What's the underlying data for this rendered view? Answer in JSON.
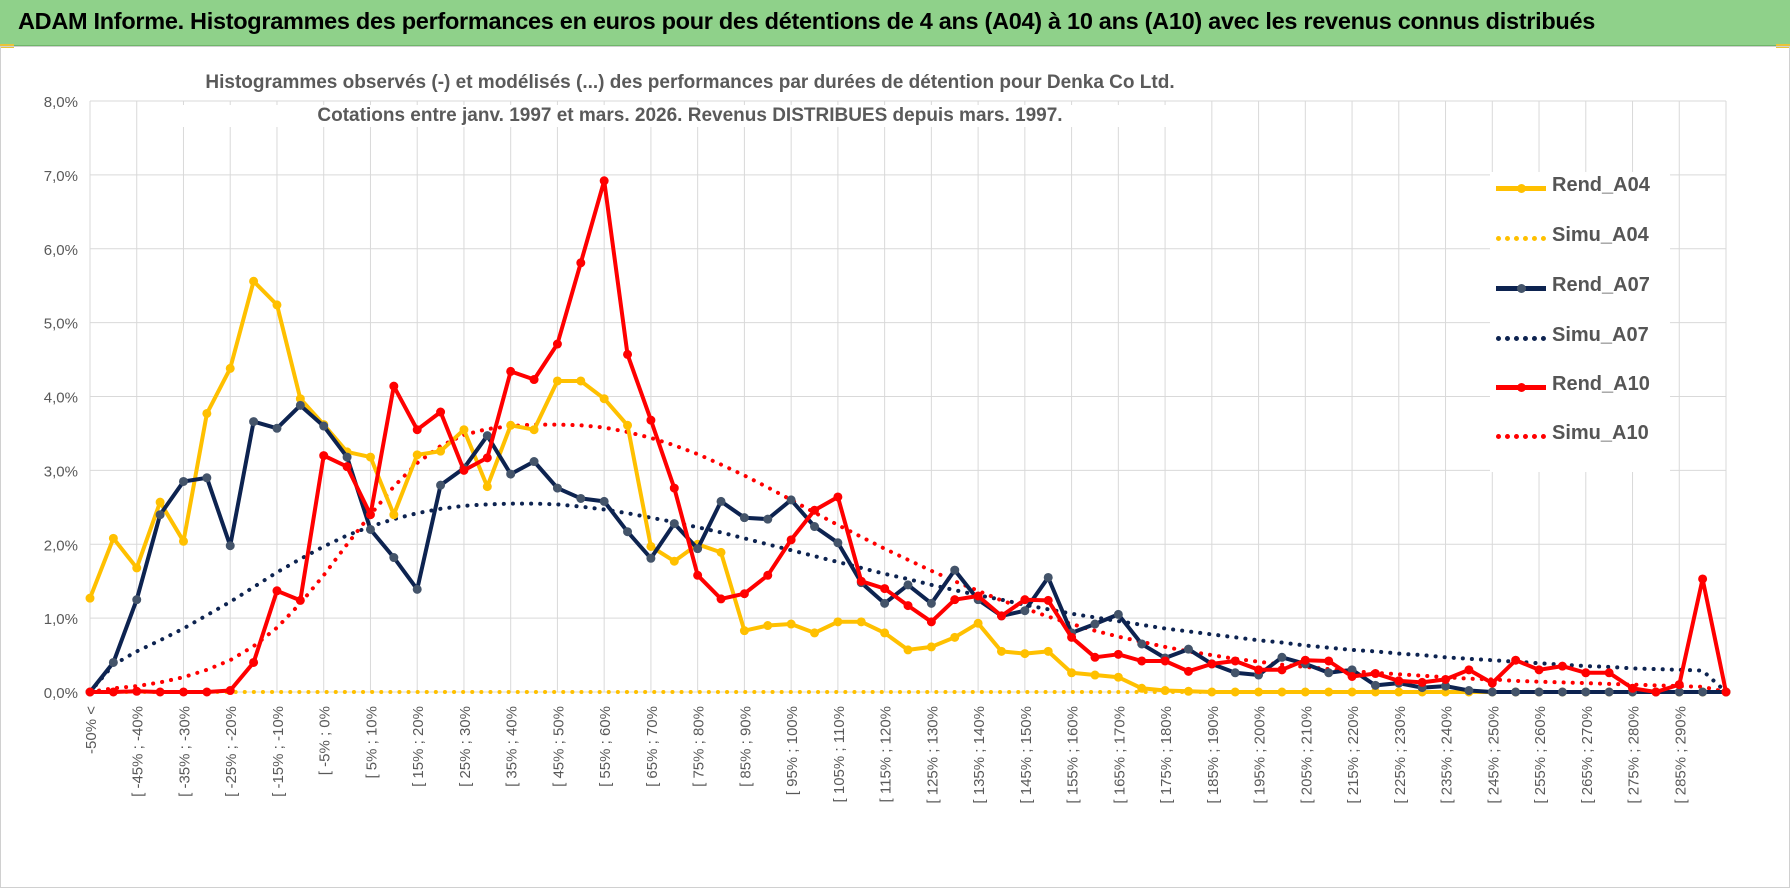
{
  "header": {
    "banner_title": "ADAM Informe. Histogrammes des performances en euros pour des détentions de 4 ans (A04) à 10 ans (A10) avec les revenus connus distribués"
  },
  "colors": {
    "banner_bg": "#8fd18a",
    "A04": "#ffc000",
    "A07": "#0d2350",
    "A07_marker": "#44546a",
    "A10": "#ff0000",
    "grid": "#d9d9d9",
    "axis_text": "#595959"
  },
  "chart_data": {
    "type": "line",
    "title": "Histogrammes observés (-) et modélisés (...) des performances par durées de détention pour Denka Co Ltd.",
    "subtitle": "Cotations entre janv. 1997 et mars. 2026. Revenus DISTRIBUES depuis mars. 1997.",
    "xlabel": "",
    "ylabel": "",
    "ylim": [
      0,
      8
    ],
    "y_ticks": [
      "0,0%",
      "1,0%",
      "2,0%",
      "3,0%",
      "4,0%",
      "5,0%",
      "6,0%",
      "7,0%",
      "8,0%"
    ],
    "grid": true,
    "legend_position": "right",
    "categories": [
      "-50% <",
      "[ -50% ; -45% [",
      "[ -45% ; -40% [",
      "[ -40% ; -35% [",
      "[ -35% ; -30% [",
      "[ -30% ; -25% [",
      "[ -25% ; -20% [",
      "[ -20% ; -15% [",
      "[ -15% ; -10% [",
      "[ -10% ; -5% [",
      "[ -5% ; 0% [",
      "[ 0% ; 5% [",
      "[ 5% ; 10% [",
      "[ 10% ; 15% [",
      "[ 15% ; 20% [",
      "[ 20% ; 25% [",
      "[ 25% ; 30% [",
      "[ 30% ; 35% [",
      "[ 35% ; 40% [",
      "[ 40% ; 45% [",
      "[ 45% ; 50% [",
      "[ 50% ; 55% [",
      "[ 55% ; 60% [",
      "[ 60% ; 65% [",
      "[ 65% ; 70% [",
      "[ 70% ; 75% [",
      "[ 75% ; 80% [",
      "[ 80% ; 85% [",
      "[ 85% ; 90% [",
      "[ 90% ; 95% [",
      "[ 95% ; 100% [",
      "[ 100% ; 105% [",
      "[ 105% ; 110% [",
      "[ 110% ; 115% [",
      "[ 115% ; 120% [",
      "[ 120% ; 125% [",
      "[ 125% ; 130% [",
      "[ 130% ; 135% [",
      "[ 135% ; 140% [",
      "[ 140% ; 145% [",
      "[ 145% ; 150% [",
      "[ 150% ; 155% [",
      "[ 155% ; 160% [",
      "[ 160% ; 165% [",
      "[ 165% ; 170% [",
      "[ 170% ; 175% [",
      "[ 175% ; 180% [",
      "[ 180% ; 185% [",
      "[ 185% ; 190% [",
      "[ 190% ; 195% [",
      "[ 195% ; 200% [",
      "[ 200% ; 205% [",
      "[ 205% ; 210% [",
      "[ 210% ; 215% [",
      "[ 215% ; 220% [",
      "[ 220% ; 225% [",
      "[ 225% ; 230% [",
      "[ 230% ; 235% [",
      "[ 235% ; 240% [",
      "[ 240% ; 245% [",
      "[ 245% ; 250% [",
      "[ 250% ; 255% [",
      "[ 255% ; 260% [",
      "[ 260% ; 265% [",
      "[ 265% ; 270% [",
      "[ 270% ; 275% [",
      "[ 275% ; 280% [",
      "[ 280% ; 285% [",
      "[ 285% ; 290% [",
      "[ 290% ; 295% [",
      "[ 295% ; 300% ["
    ],
    "x_tick_labels": [
      "-50% <",
      "[ -45% ; -40%",
      "[ -35% ; -30%",
      "[ -25% ; -20%",
      "[ -15% ; -10%",
      "[ -5% ; 0%",
      "[ 5% ; 10%",
      "[ 15% ; 20%",
      "[ 25% ; 30%",
      "[ 35% ; 40%",
      "[ 45% ; 50%",
      "[ 55% ; 60%",
      "[ 65% ; 70%",
      "[ 75% ; 80%",
      "[ 85% ; 90%",
      "[ 95% ; 100%",
      "[ 105% ; 110%",
      "[ 115% ; 120%",
      "[ 125% ; 130%",
      "[ 135% ; 140%",
      "[ 145% ; 150%",
      "[ 155% ; 160%",
      "[ 165% ; 170%",
      "[ 175% ; 180%",
      "[ 185% ; 190%",
      "[ 195% ; 200%",
      "[ 205% ; 210%",
      "[ 215% ; 220%",
      "[ 225% ; 230%",
      "[ 235% ; 240%",
      "[ 245% ; 250%",
      "[ 255% ; 260%",
      "[ 265% ; 270%",
      "[ 275% ; 280%",
      "[ 285% ; 290%"
    ],
    "series": [
      {
        "name": "Rend_A04",
        "style": "solid",
        "marker": true,
        "color": "#ffc000",
        "values": [
          1.27,
          2.08,
          1.68,
          2.57,
          2.04,
          3.77,
          4.38,
          5.56,
          5.24,
          3.97,
          3.62,
          3.25,
          3.18,
          2.4,
          3.21,
          3.26,
          3.55,
          2.78,
          3.61,
          3.55,
          4.21,
          4.21,
          3.97,
          3.61,
          1.97,
          1.77,
          2.0,
          1.89,
          0.83,
          0.9,
          0.92,
          0.8,
          0.95,
          0.95,
          0.8,
          0.57,
          0.61,
          0.74,
          0.93,
          0.55,
          0.52,
          0.55,
          0.26,
          0.23,
          0.2,
          0.05,
          0.02,
          0.01,
          0.0,
          0.0,
          0.0,
          0.0,
          0.0,
          0.0,
          0.0,
          0.0,
          0.0,
          0.0,
          0.0,
          0.0,
          0.0,
          0.0,
          0.0,
          0.0,
          0.0,
          0.0,
          0.0,
          0.0,
          0.0,
          0.0,
          0.0
        ]
      },
      {
        "name": "Simu_A04",
        "style": "dotted",
        "marker": false,
        "color": "#ffc000",
        "values": [
          0.0,
          0.0,
          0.0,
          0.0,
          0.0,
          0.0,
          0.0,
          0.0,
          0.0,
          0.0,
          0.0,
          0.0,
          0.0,
          0.0,
          0.0,
          0.0,
          0.0,
          0.0,
          0.0,
          0.0,
          0.0,
          0.0,
          0.0,
          0.0,
          0.0,
          0.0,
          0.0,
          0.0,
          0.0,
          0.0,
          0.0,
          0.0,
          0.0,
          0.0,
          0.0,
          0.0,
          0.0,
          0.0,
          0.0,
          0.0,
          0.0,
          0.0,
          0.0,
          0.0,
          0.0,
          0.0,
          0.0,
          0.0,
          0.0,
          0.0,
          0.0,
          0.0,
          0.0,
          0.0,
          0.0,
          0.0,
          0.0,
          0.0,
          0.0,
          0.0,
          0.0,
          0.0,
          0.0,
          0.0,
          0.0,
          0.0,
          0.0,
          0.0,
          0.0,
          0.0,
          0.0
        ]
      },
      {
        "name": "Rend_A07",
        "style": "solid",
        "marker": true,
        "color": "#0d2350",
        "values": [
          0.0,
          0.4,
          1.25,
          2.4,
          2.85,
          2.9,
          1.98,
          3.66,
          3.57,
          3.88,
          3.6,
          3.18,
          2.2,
          1.82,
          1.39,
          2.8,
          3.03,
          3.47,
          2.95,
          3.12,
          2.76,
          2.62,
          2.58,
          2.17,
          1.81,
          2.28,
          1.94,
          2.58,
          2.36,
          2.34,
          2.6,
          2.24,
          2.02,
          1.48,
          1.2,
          1.45,
          1.2,
          1.65,
          1.25,
          1.03,
          1.1,
          1.55,
          0.8,
          0.92,
          1.05,
          0.65,
          0.46,
          0.58,
          0.38,
          0.26,
          0.23,
          0.47,
          0.38,
          0.26,
          0.3,
          0.09,
          0.12,
          0.06,
          0.08,
          0.02,
          0.0,
          0.0,
          0.0,
          0.0,
          0.0,
          0.0,
          0.0,
          0.0,
          0.0,
          0.0,
          0.0
        ]
      },
      {
        "name": "Simu_A07",
        "style": "dotted",
        "marker": false,
        "color": "#0d2350",
        "values": [
          0.0,
          0.37,
          0.55,
          0.7,
          0.86,
          1.04,
          1.22,
          1.42,
          1.62,
          1.8,
          1.97,
          2.12,
          2.24,
          2.34,
          2.42,
          2.48,
          2.52,
          2.54,
          2.55,
          2.55,
          2.54,
          2.51,
          2.47,
          2.42,
          2.36,
          2.3,
          2.23,
          2.16,
          2.08,
          2.0,
          1.92,
          1.84,
          1.76,
          1.68,
          1.6,
          1.53,
          1.45,
          1.38,
          1.31,
          1.25,
          1.18,
          1.12,
          1.06,
          1.01,
          0.96,
          0.91,
          0.86,
          0.82,
          0.78,
          0.74,
          0.7,
          0.67,
          0.63,
          0.6,
          0.57,
          0.55,
          0.52,
          0.5,
          0.47,
          0.45,
          0.43,
          0.41,
          0.39,
          0.37,
          0.35,
          0.34,
          0.32,
          0.31,
          0.3,
          0.29,
          0.0
        ]
      },
      {
        "name": "Rend_A10",
        "style": "solid",
        "marker": true,
        "color": "#ff0000",
        "values": [
          0.0,
          0.0,
          0.01,
          0.0,
          0.0,
          0.0,
          0.02,
          0.4,
          1.37,
          1.24,
          3.2,
          3.05,
          2.4,
          4.14,
          3.55,
          3.79,
          3.0,
          3.17,
          4.34,
          4.23,
          4.71,
          5.81,
          6.92,
          4.57,
          3.68,
          2.76,
          1.58,
          1.26,
          1.33,
          1.58,
          2.06,
          2.46,
          2.64,
          1.5,
          1.4,
          1.17,
          0.95,
          1.25,
          1.3,
          1.03,
          1.25,
          1.24,
          0.74,
          0.47,
          0.51,
          0.42,
          0.42,
          0.28,
          0.38,
          0.42,
          0.3,
          0.3,
          0.43,
          0.42,
          0.21,
          0.25,
          0.15,
          0.13,
          0.17,
          0.3,
          0.12,
          0.43,
          0.3,
          0.35,
          0.26,
          0.26,
          0.05,
          0.0,
          0.1,
          1.53,
          0.0
        ]
      },
      {
        "name": "Simu_A10",
        "style": "dotted",
        "marker": false,
        "color": "#ff0000",
        "values": [
          0.0,
          0.05,
          0.08,
          0.13,
          0.2,
          0.3,
          0.43,
          0.62,
          0.87,
          1.2,
          1.58,
          2.0,
          2.4,
          2.78,
          3.1,
          3.33,
          3.48,
          3.56,
          3.6,
          3.62,
          3.62,
          3.61,
          3.58,
          3.52,
          3.44,
          3.34,
          3.22,
          3.08,
          2.93,
          2.77,
          2.6,
          2.43,
          2.26,
          2.1,
          1.94,
          1.79,
          1.64,
          1.5,
          1.37,
          1.24,
          1.13,
          1.02,
          0.92,
          0.83,
          0.75,
          0.68,
          0.61,
          0.55,
          0.5,
          0.45,
          0.41,
          0.37,
          0.34,
          0.31,
          0.28,
          0.26,
          0.24,
          0.22,
          0.2,
          0.18,
          0.17,
          0.15,
          0.14,
          0.13,
          0.12,
          0.11,
          0.1,
          0.09,
          0.08,
          0.07,
          0.0
        ]
      }
    ]
  }
}
